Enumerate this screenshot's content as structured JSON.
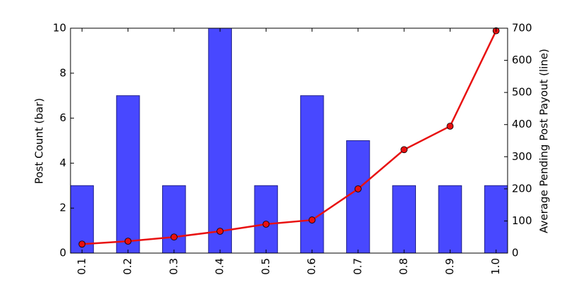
{
  "chart_data": {
    "type": "bar",
    "y_label": "Post Count (bar)",
    "y2_label": "Average Pending Post Payout (line)",
    "categories": [
      "0.1",
      "0.2",
      "0.3",
      "0.4",
      "0.5",
      "0.6",
      "0.7",
      "0.8",
      "0.9",
      "1.0"
    ],
    "series": [
      {
        "color": "#4848ff",
        "values": [
          3,
          7,
          3,
          10,
          3,
          7,
          5,
          3,
          3,
          3
        ]
      },
      {
        "color": "#e81010",
        "type": "line",
        "axis": "y2",
        "values": [
          28,
          37,
          50,
          68,
          90,
          103,
          200,
          322,
          395,
          692
        ]
      }
    ],
    "ylim": [
      0,
      10
    ],
    "yticks": [
      0,
      2,
      4,
      6,
      8,
      10
    ],
    "y2lim": [
      0,
      700
    ],
    "y2ticks": [
      0,
      100,
      200,
      300,
      400,
      500,
      600,
      700
    ]
  }
}
